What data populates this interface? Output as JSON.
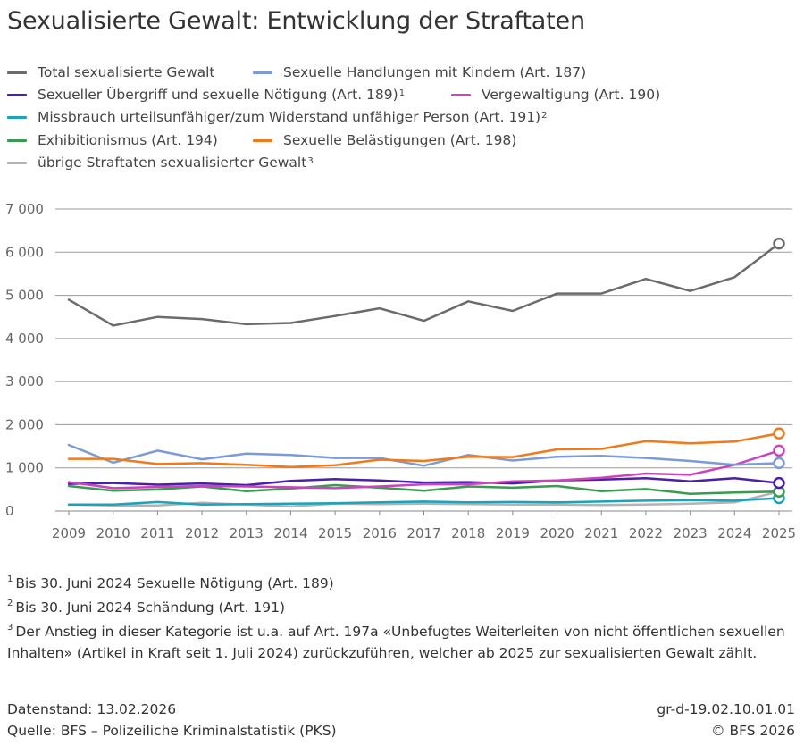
{
  "chart_data": {
    "type": "line",
    "title": "Sexualisierte Gewalt: Entwicklung der Straftaten",
    "xlabel": "",
    "ylabel": "",
    "x": [
      "2009",
      "2010",
      "2011",
      "2012",
      "2013",
      "2014",
      "2015",
      "2016",
      "2017",
      "2018",
      "2019",
      "2020",
      "2021",
      "2022",
      "2023",
      "2024",
      "2025"
    ],
    "y_ticks": [
      "0",
      "1 000",
      "2 000",
      "3 000",
      "4 000",
      "5 000",
      "6 000",
      "7 000"
    ],
    "ylim": [
      0,
      7000
    ],
    "grid": true,
    "legend_position": "top",
    "series": [
      {
        "name": "Total sexualisierte Gewalt",
        "superscript": "",
        "color": "#6b6b6b",
        "values": [
          4900,
          4300,
          4500,
          4450,
          4330,
          4360,
          4520,
          4700,
          4410,
          4860,
          4640,
          5040,
          5040,
          5380,
          5100,
          5420,
          6200
        ]
      },
      {
        "name": "Sexuelle Handlungen mit Kindern (Art. 187)",
        "superscript": "",
        "color": "#7a9bd6",
        "values": [
          1530,
          1120,
          1400,
          1200,
          1330,
          1300,
          1230,
          1230,
          1050,
          1300,
          1170,
          1260,
          1280,
          1230,
          1160,
          1070,
          1110
        ]
      },
      {
        "name": "Sexueller Übergriff und sexuelle Nötigung (Art. 189)",
        "superscript": "1",
        "color": "#4b1fa8",
        "values": [
          630,
          650,
          610,
          640,
          600,
          700,
          740,
          710,
          660,
          670,
          640,
          710,
          730,
          760,
          690,
          760,
          650
        ]
      },
      {
        "name": "Vergewaltigung (Art. 190)",
        "superscript": "",
        "color": "#cc44bb",
        "values": [
          670,
          530,
          560,
          580,
          570,
          550,
          530,
          570,
          620,
          620,
          690,
          710,
          770,
          870,
          840,
          1070,
          1400
        ]
      },
      {
        "name": "Missbrauch urteilsunfähiger/zum Widerstand unfähiger Person (Art. 191)",
        "superscript": "2",
        "color": "#1aa3bb",
        "values": [
          150,
          150,
          210,
          150,
          160,
          170,
          180,
          200,
          220,
          200,
          210,
          200,
          220,
          240,
          250,
          240,
          300
        ]
      },
      {
        "name": "Exhibitionismus (Art. 194)",
        "superscript": "",
        "color": "#3a9a50",
        "values": [
          580,
          470,
          500,
          570,
          460,
          520,
          600,
          540,
          470,
          570,
          540,
          580,
          460,
          510,
          400,
          430,
          450
        ]
      },
      {
        "name": "Sexuelle Belästigungen (Art. 198)",
        "superscript": "",
        "color": "#f07a1a",
        "values": [
          1210,
          1210,
          1090,
          1110,
          1070,
          1020,
          1060,
          1190,
          1160,
          1260,
          1250,
          1430,
          1440,
          1620,
          1570,
          1610,
          1800
        ]
      },
      {
        "name": "übrige Straftaten sexualisierter Gewalt",
        "superscript": "3",
        "color": "#b3b3b3",
        "values": [
          150,
          130,
          130,
          190,
          150,
          110,
          170,
          160,
          170,
          160,
          150,
          150,
          140,
          150,
          170,
          200,
          450
        ]
      }
    ]
  },
  "footnotes": [
    {
      "mark": "1",
      "text": "Bis 30. Juni 2024 Sexuelle Nötigung (Art. 189)"
    },
    {
      "mark": "2",
      "text": "Bis 30. Juni 2024 Schändung (Art. 191)"
    },
    {
      "mark": "3",
      "text": "Der Anstieg in dieser Kategorie ist u.a. auf Art. 197a «Unbefugtes Weiterleiten von nicht öffentlichen sexuellen Inhalten» (Artikel in Kraft seit 1. Juli 2024) zurückzuführen, welcher ab 2025 zur sexualisierten Gewalt zählt."
    }
  ],
  "meta": {
    "datenstand": "Datenstand: 13.02.2026",
    "quelle": "Quelle: BFS – Polizeiliche Kriminalstatistik (PKS)",
    "code": "gr-d-19.02.10.01.01",
    "copyright": "© BFS 2026"
  }
}
